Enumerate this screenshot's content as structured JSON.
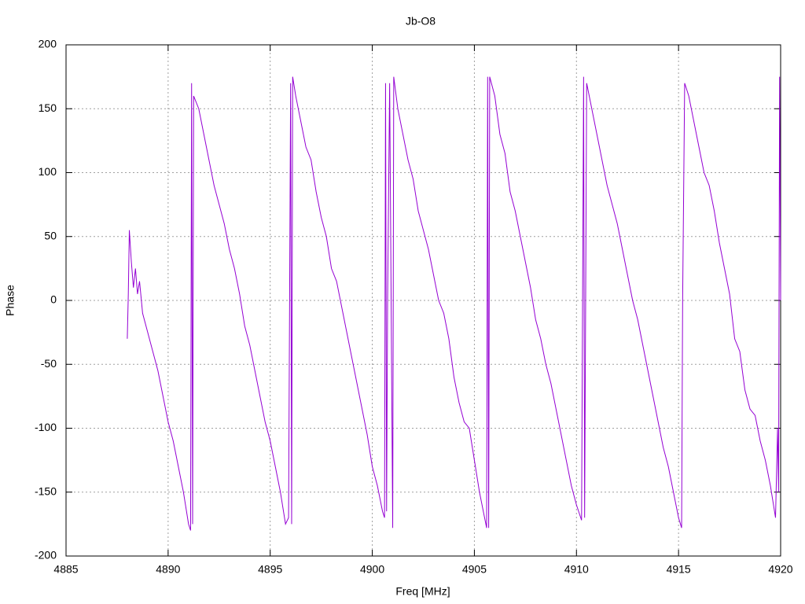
{
  "chart_data": {
    "type": "line",
    "title": "Jb-O8",
    "xlabel": "Freq [MHz]",
    "ylabel": "Phase",
    "xlim": [
      4885,
      4920
    ],
    "ylim": [
      -200,
      200
    ],
    "xticks": [
      4885,
      4890,
      4895,
      4900,
      4905,
      4910,
      4915,
      4920
    ],
    "yticks": [
      -200,
      -150,
      -100,
      -50,
      0,
      50,
      100,
      150,
      200
    ],
    "grid": true,
    "x": [
      4888.0,
      4888.05,
      4888.1,
      4888.2,
      4888.3,
      4888.4,
      4888.5,
      4888.6,
      4888.75,
      4889.0,
      4889.25,
      4889.5,
      4889.75,
      4890.0,
      4890.25,
      4890.5,
      4890.75,
      4891.0,
      4891.1,
      4891.15,
      4891.2,
      4891.25,
      4891.5,
      4891.75,
      4892.0,
      4892.25,
      4892.5,
      4892.75,
      4893.0,
      4893.25,
      4893.5,
      4893.75,
      4894.0,
      4894.25,
      4894.5,
      4894.75,
      4895.0,
      4895.25,
      4895.5,
      4895.75,
      4895.9,
      4896.0,
      4896.05,
      4896.1,
      4896.25,
      4896.5,
      4896.75,
      4897.0,
      4897.25,
      4897.5,
      4897.75,
      4898.0,
      4898.25,
      4898.5,
      4898.75,
      4899.0,
      4899.25,
      4899.5,
      4899.75,
      4900.0,
      4900.25,
      4900.5,
      4900.6,
      4900.65,
      4900.7,
      4900.75,
      4900.85,
      4901.0,
      4901.05,
      4901.25,
      4901.5,
      4901.75,
      4902.0,
      4902.25,
      4902.5,
      4902.75,
      4903.0,
      4903.25,
      4903.5,
      4903.75,
      4904.0,
      4904.25,
      4904.5,
      4904.75,
      4905.0,
      4905.25,
      4905.5,
      4905.6,
      4905.65,
      4905.7,
      4905.75,
      4906.0,
      4906.25,
      4906.5,
      4906.75,
      4907.0,
      4907.25,
      4907.5,
      4907.75,
      4908.0,
      4908.25,
      4908.5,
      4908.75,
      4909.0,
      4909.25,
      4909.5,
      4909.75,
      4910.0,
      4910.25,
      4910.35,
      4910.4,
      4910.5,
      4910.75,
      4911.0,
      4911.25,
      4911.5,
      4911.75,
      4912.0,
      4912.25,
      4912.5,
      4912.75,
      4913.0,
      4913.25,
      4913.5,
      4913.75,
      4914.0,
      4914.25,
      4914.5,
      4914.75,
      4915.0,
      4915.15,
      4915.2,
      4915.3,
      4915.5,
      4915.75,
      4916.0,
      4916.25,
      4916.5,
      4916.75,
      4917.0,
      4917.25,
      4917.5,
      4917.75,
      4918.0,
      4918.25,
      4918.5,
      4918.75,
      4919.0,
      4919.25,
      4919.5,
      4919.75,
      4919.85,
      4919.9,
      4919.95,
      4920.0
    ],
    "series": [
      {
        "name": "Jb-O8",
        "color": "#9400d3",
        "values": [
          -30,
          5,
          55,
          30,
          10,
          25,
          5,
          15,
          -10,
          -25,
          -40,
          -55,
          -75,
          -95,
          -110,
          -130,
          -150,
          -175,
          -180,
          170,
          -175,
          160,
          150,
          130,
          110,
          90,
          75,
          60,
          40,
          25,
          5,
          -20,
          -35,
          -55,
          -75,
          -95,
          -110,
          -130,
          -150,
          -175,
          -170,
          170,
          -175,
          175,
          160,
          140,
          120,
          110,
          85,
          65,
          50,
          25,
          15,
          -5,
          -25,
          -45,
          -65,
          -85,
          -105,
          -130,
          -145,
          -165,
          -170,
          170,
          -165,
          0,
          170,
          -178,
          175,
          150,
          130,
          110,
          95,
          70,
          55,
          40,
          20,
          0,
          -10,
          -30,
          -60,
          -80,
          -95,
          -100,
          -125,
          -150,
          -170,
          -178,
          175,
          -178,
          175,
          160,
          130,
          115,
          85,
          70,
          50,
          30,
          10,
          -15,
          -30,
          -50,
          -65,
          -85,
          -105,
          -125,
          -145,
          -160,
          -172,
          175,
          -170,
          170,
          150,
          130,
          110,
          90,
          75,
          60,
          40,
          20,
          0,
          -15,
          -35,
          -55,
          -75,
          -95,
          -115,
          -130,
          -150,
          -170,
          -178,
          0,
          170,
          160,
          140,
          120,
          100,
          90,
          70,
          45,
          25,
          5,
          -30,
          -40,
          -70,
          -85,
          -90,
          -110,
          -125,
          -145,
          -170,
          -100,
          -150,
          175,
          0
        ]
      }
    ]
  }
}
